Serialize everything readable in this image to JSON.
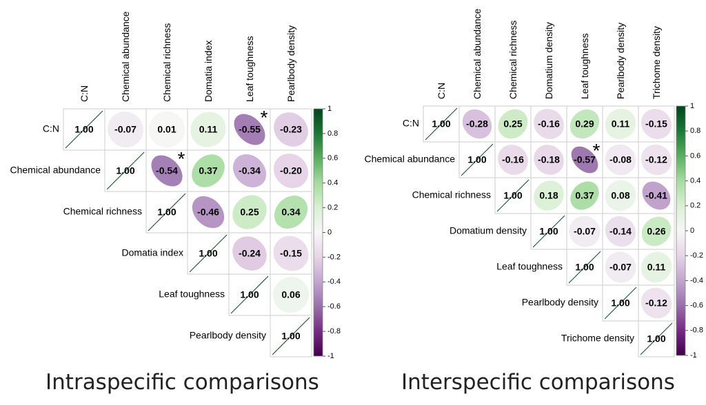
{
  "chart_data": [
    {
      "type": "heatmap",
      "title": "Intraspecific comparisons",
      "variables": [
        "C:N",
        "Chemical abundance",
        "Chemical richness",
        "Domatia index",
        "Leaf toughness",
        "Pearlbody density"
      ],
      "matrix": [
        [
          "1.00",
          "-0.07",
          "0.01",
          "0.11",
          "-0.55",
          "-0.23"
        ],
        [
          null,
          "1.00",
          "-0.54",
          "0.37",
          "-0.34",
          "-0.20"
        ],
        [
          null,
          null,
          "1.00",
          "-0.46",
          "0.25",
          "0.34"
        ],
        [
          null,
          null,
          null,
          "1.00",
          "-0.24",
          "-0.15"
        ],
        [
          null,
          null,
          null,
          null,
          "1.00",
          "0.06"
        ],
        [
          null,
          null,
          null,
          null,
          null,
          "1.00"
        ]
      ],
      "significant": [
        [
          0,
          4
        ],
        [
          1,
          2
        ]
      ],
      "significance_marker": "*",
      "colorbar": {
        "ticks": [
          "1",
          "0.8",
          "0.6",
          "0.4",
          "0.2",
          "0",
          "-0.2",
          "-0.4",
          "-0.6",
          "-0.8",
          "-1"
        ],
        "range": [
          -1,
          1
        ],
        "colors": [
          "#40004b",
          "#762a83",
          "#9970ab",
          "#c2a5cf",
          "#e7d4e8",
          "#f7f7f7",
          "#d9f0d3",
          "#a6dba0",
          "#5aae61",
          "#1b7837",
          "#00441b"
        ]
      },
      "layout": "upper-triangle"
    },
    {
      "type": "heatmap",
      "title": "Interspecific comparisons",
      "variables": [
        "C:N",
        "Chemical abundance",
        "Chemical richness",
        "Domatium density",
        "Leaf toughness",
        "Pearlbody density",
        "Trichome density"
      ],
      "matrix": [
        [
          "1.00",
          "-0.28",
          "0.25",
          "-0.16",
          "0.29",
          "0.11",
          "-0.15"
        ],
        [
          null,
          "1.00",
          "-0.16",
          "-0.18",
          "-0.57",
          "-0.08",
          "-0.12"
        ],
        [
          null,
          null,
          "1.00",
          "0.18",
          "0.37",
          "0.08",
          "-0.41"
        ],
        [
          null,
          null,
          null,
          "1.00",
          "-0.07",
          "-0.14",
          "0.26"
        ],
        [
          null,
          null,
          null,
          null,
          "1.00",
          "-0.07",
          "0.11"
        ],
        [
          null,
          null,
          null,
          null,
          null,
          "1.00",
          "-0.12"
        ],
        [
          null,
          null,
          null,
          null,
          null,
          null,
          "1.00"
        ]
      ],
      "significant": [
        [
          1,
          4
        ]
      ],
      "significance_marker": "*",
      "colorbar": {
        "ticks": [
          "1",
          "0.8",
          "0.6",
          "0.4",
          "0.2",
          "0",
          "-0.2",
          "-0.4",
          "-0.6",
          "-0.8",
          "-1"
        ],
        "range": [
          -1,
          1
        ],
        "colors": [
          "#40004b",
          "#762a83",
          "#9970ab",
          "#c2a5cf",
          "#e7d4e8",
          "#f7f7f7",
          "#d9f0d3",
          "#a6dba0",
          "#5aae61",
          "#1b7837",
          "#00441b"
        ]
      },
      "layout": "upper-triangle"
    }
  ]
}
